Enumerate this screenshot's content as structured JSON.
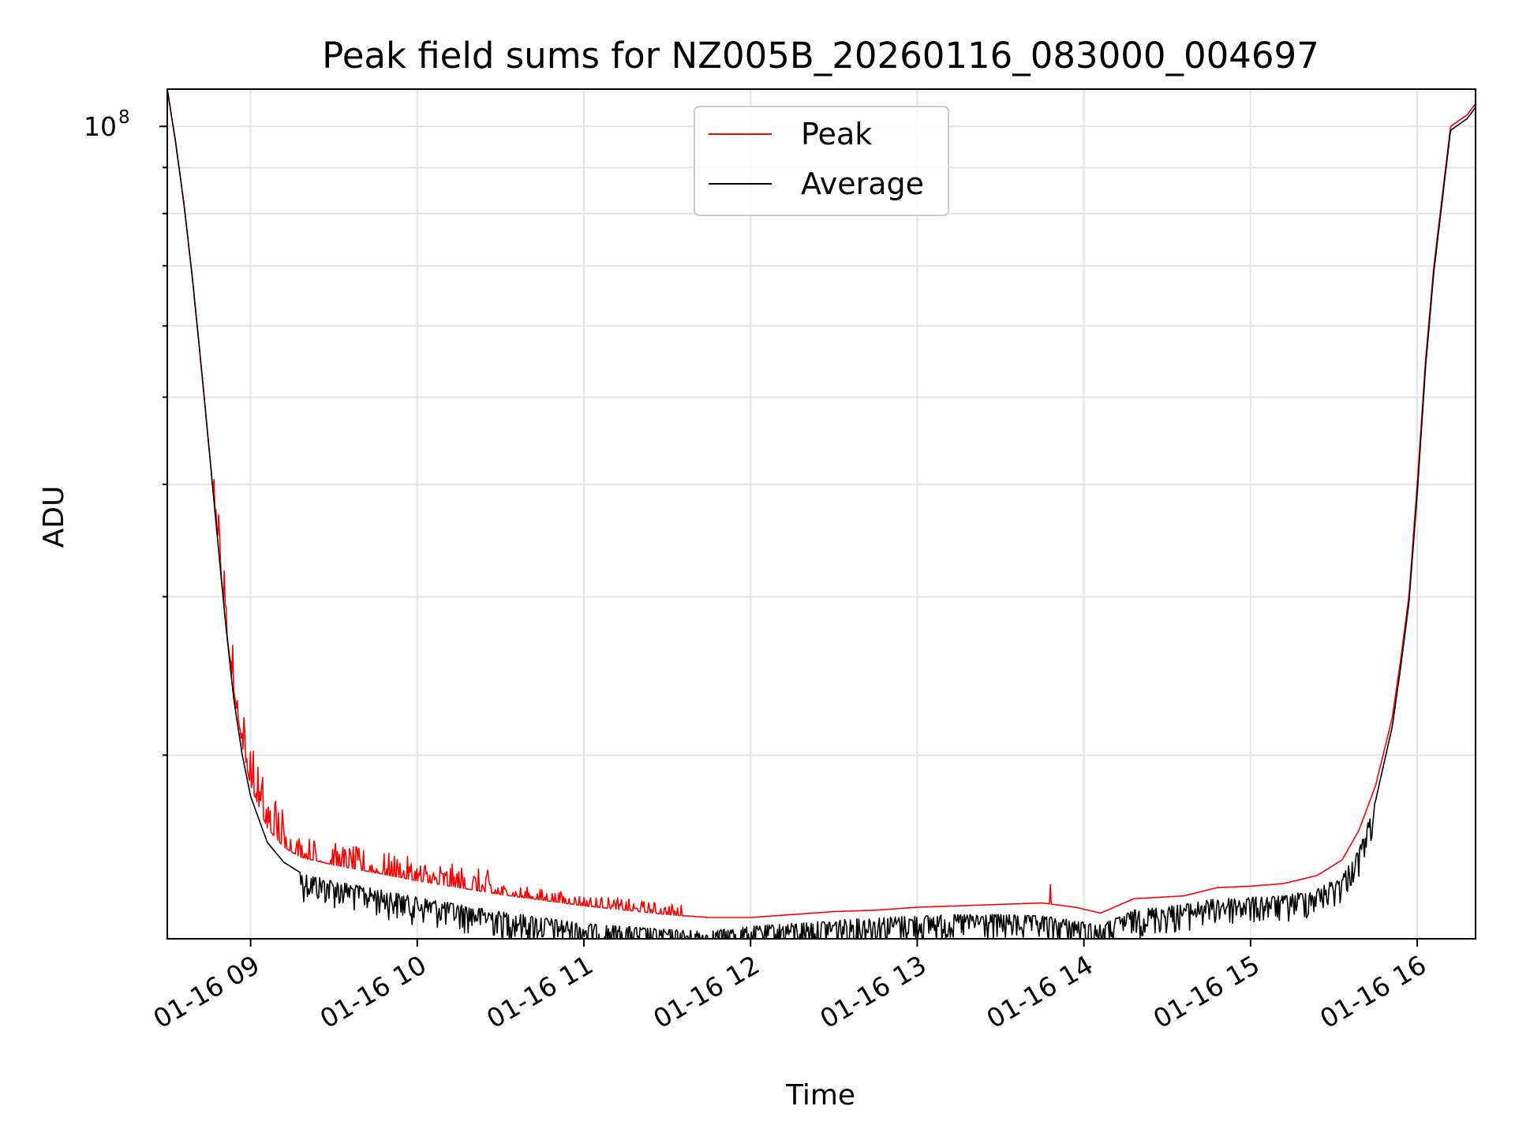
{
  "chart_data": {
    "type": "line",
    "title": "Peak field sums for NZ005B_20260116_083000_004697",
    "xlabel": "Time",
    "ylabel": "ADU",
    "yscale": "log",
    "xlim_hours": [
      8.5,
      16.35
    ],
    "ylim": [
      12500000,
      110000000
    ],
    "y_tick_major": [
      {
        "value": 100000000,
        "base": "10",
        "exponent": "8"
      }
    ],
    "y_tick_minor": [
      20000000,
      30000000,
      40000000,
      50000000,
      60000000,
      70000000,
      80000000,
      90000000
    ],
    "x_ticks": [
      {
        "hour": 9,
        "label": "01-16 09"
      },
      {
        "hour": 10,
        "label": "01-16 10"
      },
      {
        "hour": 11,
        "label": "01-16 11"
      },
      {
        "hour": 12,
        "label": "01-16 12"
      },
      {
        "hour": 13,
        "label": "01-16 13"
      },
      {
        "hour": 14,
        "label": "01-16 14"
      },
      {
        "hour": 15,
        "label": "01-16 15"
      },
      {
        "hour": 16,
        "label": "01-16 16"
      }
    ],
    "grid": true,
    "legend_position": "top-center",
    "series": [
      {
        "name": "Peak",
        "color": "#ff0000",
        "x_hours": [
          8.5,
          8.55,
          8.6,
          8.65,
          8.7,
          8.75,
          8.8,
          8.85,
          8.9,
          8.95,
          9.0,
          9.1,
          9.2,
          9.3,
          9.5,
          9.75,
          10.0,
          10.25,
          10.5,
          10.75,
          11.0,
          11.25,
          11.5,
          11.75,
          12.0,
          12.25,
          12.5,
          12.75,
          13.0,
          13.25,
          13.5,
          13.75,
          13.95,
          14.1,
          14.3,
          14.45,
          14.6,
          14.8,
          15.0,
          15.2,
          15.4,
          15.55,
          15.65,
          15.75,
          15.85,
          15.9,
          15.95,
          16.0,
          16.05,
          16.1,
          16.2,
          16.3,
          16.35
        ],
        "values": [
          110000000,
          96000000,
          82000000,
          68000000,
          55000000,
          44000000,
          35000000,
          28000000,
          23500000,
          20500000,
          18500000,
          16600000,
          15800000,
          15400000,
          15100000,
          14800000,
          14500000,
          14250000,
          14000000,
          13800000,
          13600000,
          13450000,
          13300000,
          13200000,
          13200000,
          13300000,
          13400000,
          13450000,
          13550000,
          13600000,
          13650000,
          13700000,
          13550000,
          13350000,
          13850000,
          13900000,
          13950000,
          14250000,
          14300000,
          14400000,
          14700000,
          15300000,
          16500000,
          18500000,
          22000000,
          25500000,
          30000000,
          40000000,
          55000000,
          70000000,
          100000000,
          103000000,
          106000000
        ],
        "spike_note": "dense upward spikes above the average, strongest between 09:00 and 11:30; isolated spike near 13:48"
      },
      {
        "name": "Average",
        "color": "#000000",
        "x_hours": [
          8.5,
          8.55,
          8.6,
          8.65,
          8.7,
          8.75,
          8.8,
          8.85,
          8.9,
          8.95,
          9.0,
          9.1,
          9.2,
          9.3,
          9.5,
          9.75,
          10.0,
          10.25,
          10.5,
          10.75,
          11.0,
          11.25,
          11.5,
          11.75,
          12.0,
          12.25,
          12.5,
          12.75,
          13.0,
          13.25,
          13.5,
          13.75,
          13.95,
          14.1,
          14.3,
          14.45,
          14.6,
          14.8,
          15.0,
          15.2,
          15.4,
          15.55,
          15.65,
          15.75,
          15.85,
          15.9,
          15.95,
          16.0,
          16.05,
          16.1,
          16.2,
          16.3,
          16.35
        ],
        "values": [
          110000000,
          96000000,
          82000000,
          68000000,
          55000000,
          44000000,
          35000000,
          28000000,
          23000000,
          20000000,
          18000000,
          16000000,
          15200000,
          14800000,
          14500000,
          14200000,
          13900000,
          13650000,
          13400000,
          13200000,
          13000000,
          12900000,
          12800000,
          12750000,
          12900000,
          13000000,
          13100000,
          13200000,
          13250000,
          13300000,
          13300000,
          13250000,
          13100000,
          12950000,
          13450000,
          13550000,
          13650000,
          13850000,
          13900000,
          13950000,
          14200000,
          14700000,
          15700000,
          17800000,
          21500000,
          25000000,
          29500000,
          39000000,
          54000000,
          69000000,
          99000000,
          102000000,
          105000000
        ],
        "noise_note": "dense downward dips below the trend across 09:30-15:40"
      }
    ]
  }
}
